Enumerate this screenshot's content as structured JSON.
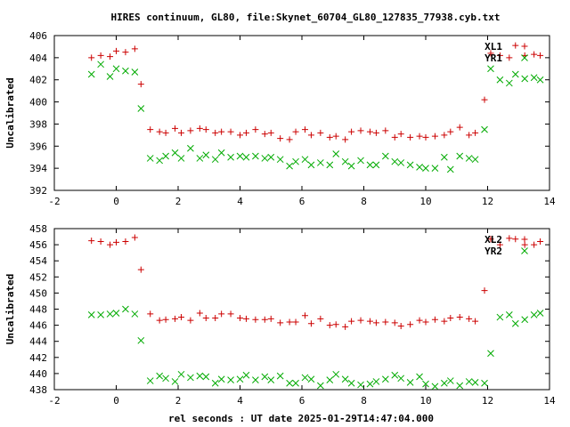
{
  "chart_data": {
    "type": "scatter",
    "title": "HIRES continuum, GL80, file:Skynet_60704_GL80_127835_77938.cyb.txt",
    "xlabel": "rel seconds : UT date 2025-01-29T14:47:04.000",
    "colors": {
      "red": "#cc0000",
      "green": "#00aa00",
      "axis": "#000000"
    },
    "panels": [
      {
        "ylabel": "Uncalibrated",
        "xlim": [
          -2,
          14
        ],
        "ylim": [
          392,
          406
        ],
        "xticks": [
          -2,
          0,
          2,
          4,
          6,
          8,
          10,
          12,
          14
        ],
        "yticks": [
          392,
          394,
          396,
          398,
          400,
          402,
          404,
          406
        ],
        "legend_position": "top-right",
        "series": [
          {
            "name": "XL1",
            "marker": "plus",
            "color": "#cc0000",
            "x": [
              -0.8,
              -0.5,
              -0.2,
              0.0,
              0.3,
              0.6,
              0.8,
              1.1,
              1.4,
              1.6,
              1.9,
              2.1,
              2.4,
              2.7,
              2.9,
              3.2,
              3.4,
              3.7,
              4.0,
              4.2,
              4.5,
              4.8,
              5.0,
              5.3,
              5.6,
              5.8,
              6.1,
              6.3,
              6.6,
              6.9,
              7.1,
              7.4,
              7.6,
              7.9,
              8.2,
              8.4,
              8.7,
              9.0,
              9.2,
              9.5,
              9.8,
              10.0,
              10.3,
              10.6,
              10.8,
              11.1,
              11.4,
              11.6,
              11.9,
              12.1,
              12.4,
              12.7,
              12.9,
              13.2,
              13.5,
              13.7
            ],
            "y": [
              404.0,
              404.2,
              404.1,
              404.6,
              404.5,
              404.8,
              401.6,
              397.5,
              397.3,
              397.2,
              397.6,
              397.2,
              397.4,
              397.6,
              397.5,
              397.2,
              397.3,
              397.3,
              397.0,
              397.2,
              397.5,
              397.1,
              397.2,
              396.7,
              396.6,
              397.3,
              397.5,
              397.0,
              397.2,
              396.8,
              396.9,
              396.6,
              397.3,
              397.4,
              397.3,
              397.2,
              397.4,
              396.8,
              397.1,
              396.8,
              396.9,
              396.8,
              396.9,
              397.0,
              397.3,
              397.7,
              397.0,
              397.2,
              400.2,
              404.4,
              404.2,
              404.0,
              405.1,
              404.2,
              404.3,
              404.2
            ]
          },
          {
            "name": "YR1",
            "marker": "cross",
            "color": "#00aa00",
            "x": [
              -0.8,
              -0.5,
              -0.2,
              0.0,
              0.3,
              0.6,
              0.8,
              1.1,
              1.4,
              1.6,
              1.9,
              2.1,
              2.4,
              2.7,
              2.9,
              3.2,
              3.4,
              3.7,
              4.0,
              4.2,
              4.5,
              4.8,
              5.0,
              5.3,
              5.6,
              5.8,
              6.1,
              6.3,
              6.6,
              6.9,
              7.1,
              7.4,
              7.6,
              7.9,
              8.2,
              8.4,
              8.7,
              9.0,
              9.2,
              9.5,
              9.8,
              10.0,
              10.3,
              10.6,
              10.8,
              11.1,
              11.4,
              11.6,
              11.9,
              12.1,
              12.4,
              12.7,
              12.9,
              13.2,
              13.5,
              13.7
            ],
            "y": [
              402.5,
              403.4,
              402.3,
              403.0,
              402.8,
              402.7,
              399.4,
              394.9,
              394.7,
              395.1,
              395.4,
              394.9,
              395.8,
              394.9,
              395.2,
              394.8,
              395.4,
              395.0,
              395.1,
              395.0,
              395.1,
              394.9,
              395.0,
              394.8,
              394.2,
              394.6,
              394.8,
              394.3,
              394.5,
              394.3,
              395.3,
              394.6,
              394.2,
              394.7,
              394.3,
              394.3,
              395.1,
              394.6,
              394.5,
              394.3,
              394.1,
              394.0,
              394.0,
              395.0,
              393.9,
              395.1,
              394.9,
              394.8,
              397.5,
              403.0,
              402.0,
              401.7,
              402.5,
              402.1,
              402.2,
              402.0
            ]
          }
        ]
      },
      {
        "ylabel": "Uncalibrated",
        "xlim": [
          -2,
          14
        ],
        "ylim": [
          438,
          458
        ],
        "xticks": [
          -2,
          0,
          2,
          4,
          6,
          8,
          10,
          12,
          14
        ],
        "yticks": [
          438,
          440,
          442,
          444,
          446,
          448,
          450,
          452,
          454,
          456,
          458
        ],
        "legend_position": "top-right",
        "series": [
          {
            "name": "XL2",
            "marker": "plus",
            "color": "#cc0000",
            "x": [
              -0.8,
              -0.5,
              -0.2,
              0.0,
              0.3,
              0.6,
              0.8,
              1.1,
              1.4,
              1.6,
              1.9,
              2.1,
              2.4,
              2.7,
              2.9,
              3.2,
              3.4,
              3.7,
              4.0,
              4.2,
              4.5,
              4.8,
              5.0,
              5.3,
              5.6,
              5.8,
              6.1,
              6.3,
              6.6,
              6.9,
              7.1,
              7.4,
              7.6,
              7.9,
              8.2,
              8.4,
              8.7,
              9.0,
              9.2,
              9.5,
              9.8,
              10.0,
              10.3,
              10.6,
              10.8,
              11.1,
              11.4,
              11.6,
              11.9,
              12.1,
              12.4,
              12.7,
              12.9,
              13.2,
              13.5,
              13.7
            ],
            "y": [
              456.5,
              456.4,
              456.0,
              456.3,
              456.4,
              456.9,
              452.9,
              447.4,
              446.6,
              446.7,
              446.8,
              447.0,
              446.6,
              447.5,
              446.9,
              446.9,
              447.4,
              447.4,
              446.9,
              446.8,
              446.7,
              446.7,
              446.8,
              446.3,
              446.4,
              446.4,
              447.2,
              446.2,
              446.8,
              446.0,
              446.1,
              445.8,
              446.5,
              446.6,
              446.5,
              446.3,
              446.4,
              446.3,
              445.9,
              446.1,
              446.6,
              446.4,
              446.7,
              446.5,
              446.9,
              447.0,
              446.8,
              446.5,
              450.3,
              456.7,
              456.0,
              456.8,
              456.7,
              456.0,
              456.0,
              456.4
            ]
          },
          {
            "name": "YR2",
            "marker": "cross",
            "color": "#00aa00",
            "x": [
              -0.8,
              -0.5,
              -0.2,
              0.0,
              0.3,
              0.6,
              0.8,
              1.1,
              1.4,
              1.6,
              1.9,
              2.1,
              2.4,
              2.7,
              2.9,
              3.2,
              3.4,
              3.7,
              4.0,
              4.2,
              4.5,
              4.8,
              5.0,
              5.3,
              5.6,
              5.8,
              6.1,
              6.3,
              6.6,
              6.9,
              7.1,
              7.4,
              7.6,
              7.9,
              8.2,
              8.4,
              8.7,
              9.0,
              9.2,
              9.5,
              9.8,
              10.0,
              10.3,
              10.6,
              10.8,
              11.1,
              11.4,
              11.6,
              11.9,
              12.1,
              12.4,
              12.7,
              12.9,
              13.2,
              13.5,
              13.7
            ],
            "y": [
              447.3,
              447.3,
              447.4,
              447.5,
              448.0,
              447.4,
              444.1,
              439.1,
              439.7,
              439.4,
              439.0,
              439.9,
              439.5,
              439.7,
              439.6,
              438.8,
              439.3,
              439.2,
              439.3,
              439.8,
              439.2,
              439.6,
              439.2,
              439.7,
              438.8,
              438.8,
              439.5,
              439.3,
              438.5,
              439.2,
              439.9,
              439.3,
              438.8,
              438.6,
              438.7,
              439.0,
              439.3,
              439.8,
              439.4,
              438.9,
              439.6,
              438.7,
              438.4,
              438.8,
              439.1,
              438.5,
              439.0,
              438.9,
              438.8,
              442.5,
              447.0,
              447.3,
              446.2,
              446.7,
              447.3,
              447.5
            ]
          }
        ]
      }
    ]
  }
}
